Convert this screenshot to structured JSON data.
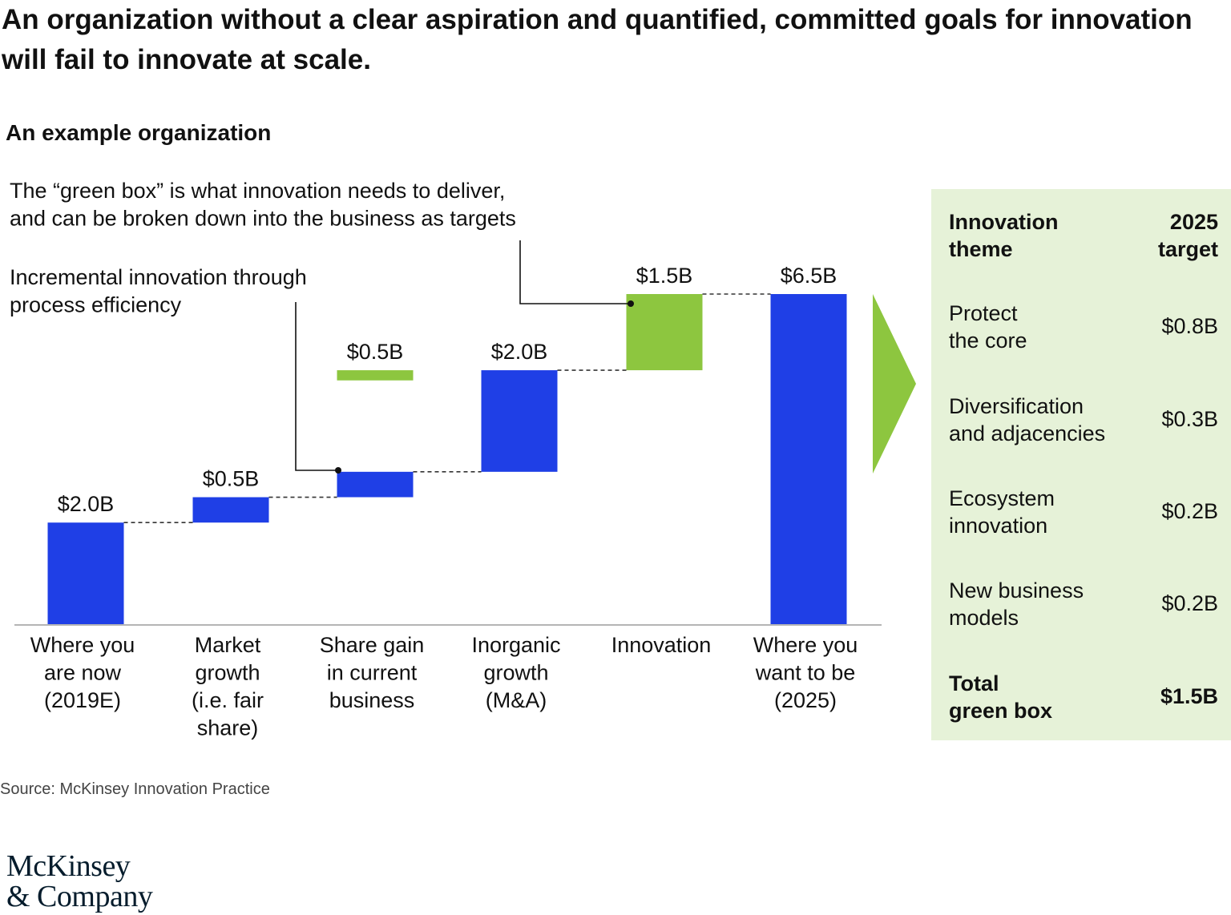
{
  "headline": "An organization without a clear aspiration and quantified, committed goals for innovation will fail to innovate at scale.",
  "subtitle": "An example organization",
  "chart_data": {
    "type": "bar",
    "subtype": "waterfall",
    "categories": [
      "Where you\nare now\n(2019E)",
      "Market\ngrowth\n(i.e. fair\nshare)",
      "Share gain\nin current\nbusiness",
      "Inorganic\ngrowth\n(M&A)",
      "Innovation",
      "Where you\nwant to be\n(2025)"
    ],
    "values": [
      2.0,
      0.5,
      0.5,
      2.0,
      1.5,
      6.5
    ],
    "value_labels": [
      "$2.0B",
      "$0.5B",
      "$0.5B",
      "$2.0B",
      "$1.5B",
      "$6.5B"
    ],
    "bases": [
      0,
      2.0,
      2.5,
      3.0,
      5.0,
      0
    ],
    "bar_colors": [
      "#1f3fe6",
      "#1f3fe6",
      "#1f3fe6",
      "#1f3fe6",
      "#8dc63f",
      "#1f3fe6"
    ],
    "green_segment": {
      "category_index": 2,
      "bottom": 4.8,
      "top": 5.0,
      "color": "#8dc63f"
    },
    "ylim": [
      0,
      6.5
    ],
    "annotations": [
      {
        "text": "The “green box” is what innovation needs to deliver,\nand can be broken down into the business as targets",
        "points_to": "Innovation"
      },
      {
        "text": "Incremental innovation through\nprocess efficiency",
        "points_to": "Share gain\nin current\nbusiness"
      }
    ],
    "xlabel": "",
    "ylabel": "",
    "grid": false
  },
  "colors": {
    "blue": "#1f3fe6",
    "green": "#8dc63f",
    "green_box_bg": "#e6f2d8"
  },
  "green_box": {
    "header_theme": "Innovation\ntheme",
    "header_target": "2025\ntarget",
    "rows": [
      {
        "theme": "Protect\nthe core",
        "target": "$0.8B"
      },
      {
        "theme": "Diversification\nand adjacencies",
        "target": "$0.3B"
      },
      {
        "theme": "Ecosystem\ninnovation",
        "target": "$0.2B"
      },
      {
        "theme": "New business\nmodels",
        "target": "$0.2B"
      }
    ],
    "total_theme": "Total\ngreen box",
    "total_target": "$1.5B"
  },
  "source": "Source: McKinsey Innovation Practice",
  "logo": "McKinsey\n& Company"
}
